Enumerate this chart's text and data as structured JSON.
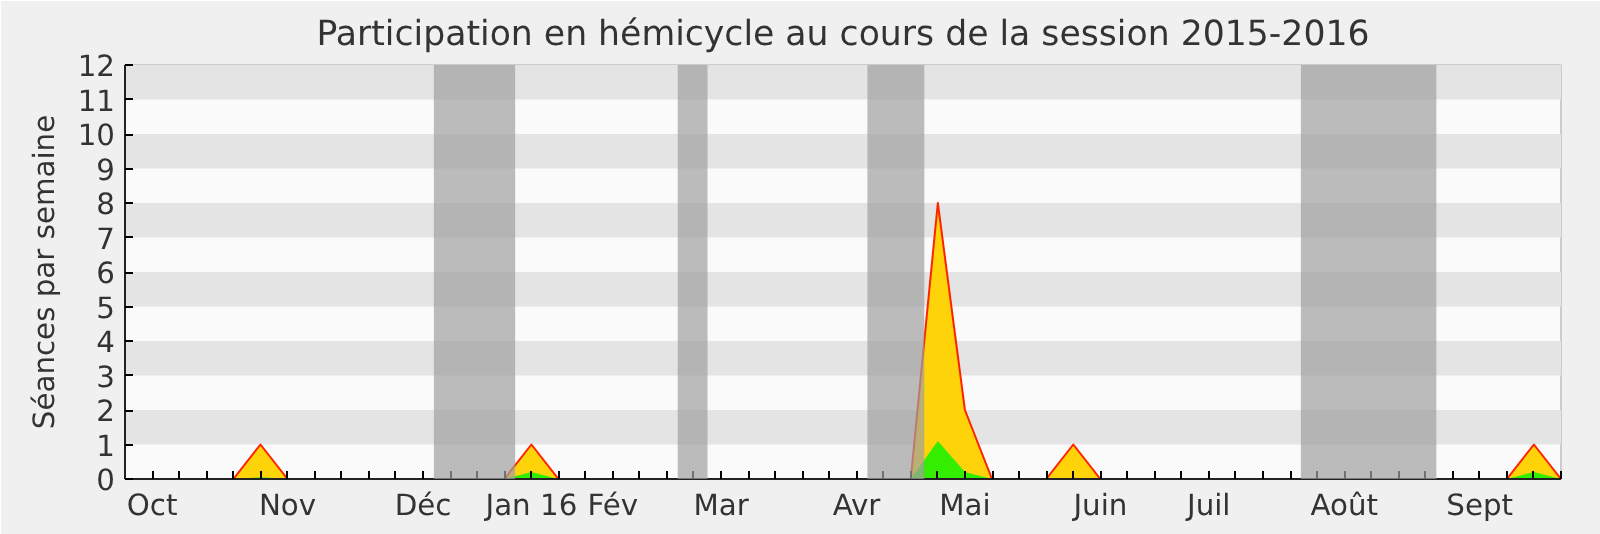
{
  "chart_data": {
    "type": "area",
    "title": "Participation en hémicycle au cours de la session 2015-2016",
    "ylabel": "Séances par semaine",
    "categories": [
      null,
      "Oct",
      null,
      null,
      null,
      null,
      "Nov",
      null,
      null,
      null,
      null,
      "Déc",
      null,
      null,
      null,
      "Jan 16",
      null,
      null,
      "Fév",
      null,
      null,
      null,
      "Mar",
      null,
      null,
      null,
      null,
      "Avr",
      null,
      null,
      null,
      "Mai",
      null,
      null,
      null,
      null,
      "Juin",
      null,
      null,
      null,
      "Juil",
      null,
      null,
      null,
      null,
      "Août",
      null,
      null,
      null,
      null,
      "Sept",
      null,
      null,
      null
    ],
    "series": [
      {
        "color": "#ffd30a",
        "values": [
          0,
          0,
          0,
          0,
          0,
          1,
          0,
          0,
          0,
          0,
          0,
          0,
          0,
          0,
          0,
          1,
          0,
          0,
          0,
          0,
          0,
          0,
          0,
          0,
          0,
          0,
          0,
          0,
          0,
          0,
          8,
          2,
          0,
          0,
          0,
          1,
          0,
          0,
          0,
          0,
          0,
          0,
          0,
          0,
          0,
          0,
          0,
          0,
          0,
          0,
          0,
          0,
          1,
          0
        ]
      },
      {
        "color": "#33ee00",
        "values": [
          0,
          0,
          0,
          0,
          0,
          0.05,
          0,
          0,
          0,
          0,
          0,
          0,
          0,
          0,
          0,
          0.2,
          0,
          0,
          0,
          0,
          0,
          0,
          0,
          0,
          0,
          0,
          0,
          0,
          0,
          0,
          1.1,
          0.2,
          0,
          0,
          0,
          0,
          0,
          0,
          0,
          0,
          0,
          0,
          0,
          0,
          0,
          0,
          0,
          0,
          0,
          0,
          0,
          0,
          0.2,
          0
        ]
      }
    ],
    "ylim": [
      0,
      12
    ],
    "yticks": [
      0,
      1,
      2,
      3,
      4,
      5,
      6,
      7,
      8,
      9,
      10,
      11,
      12
    ]
  }
}
